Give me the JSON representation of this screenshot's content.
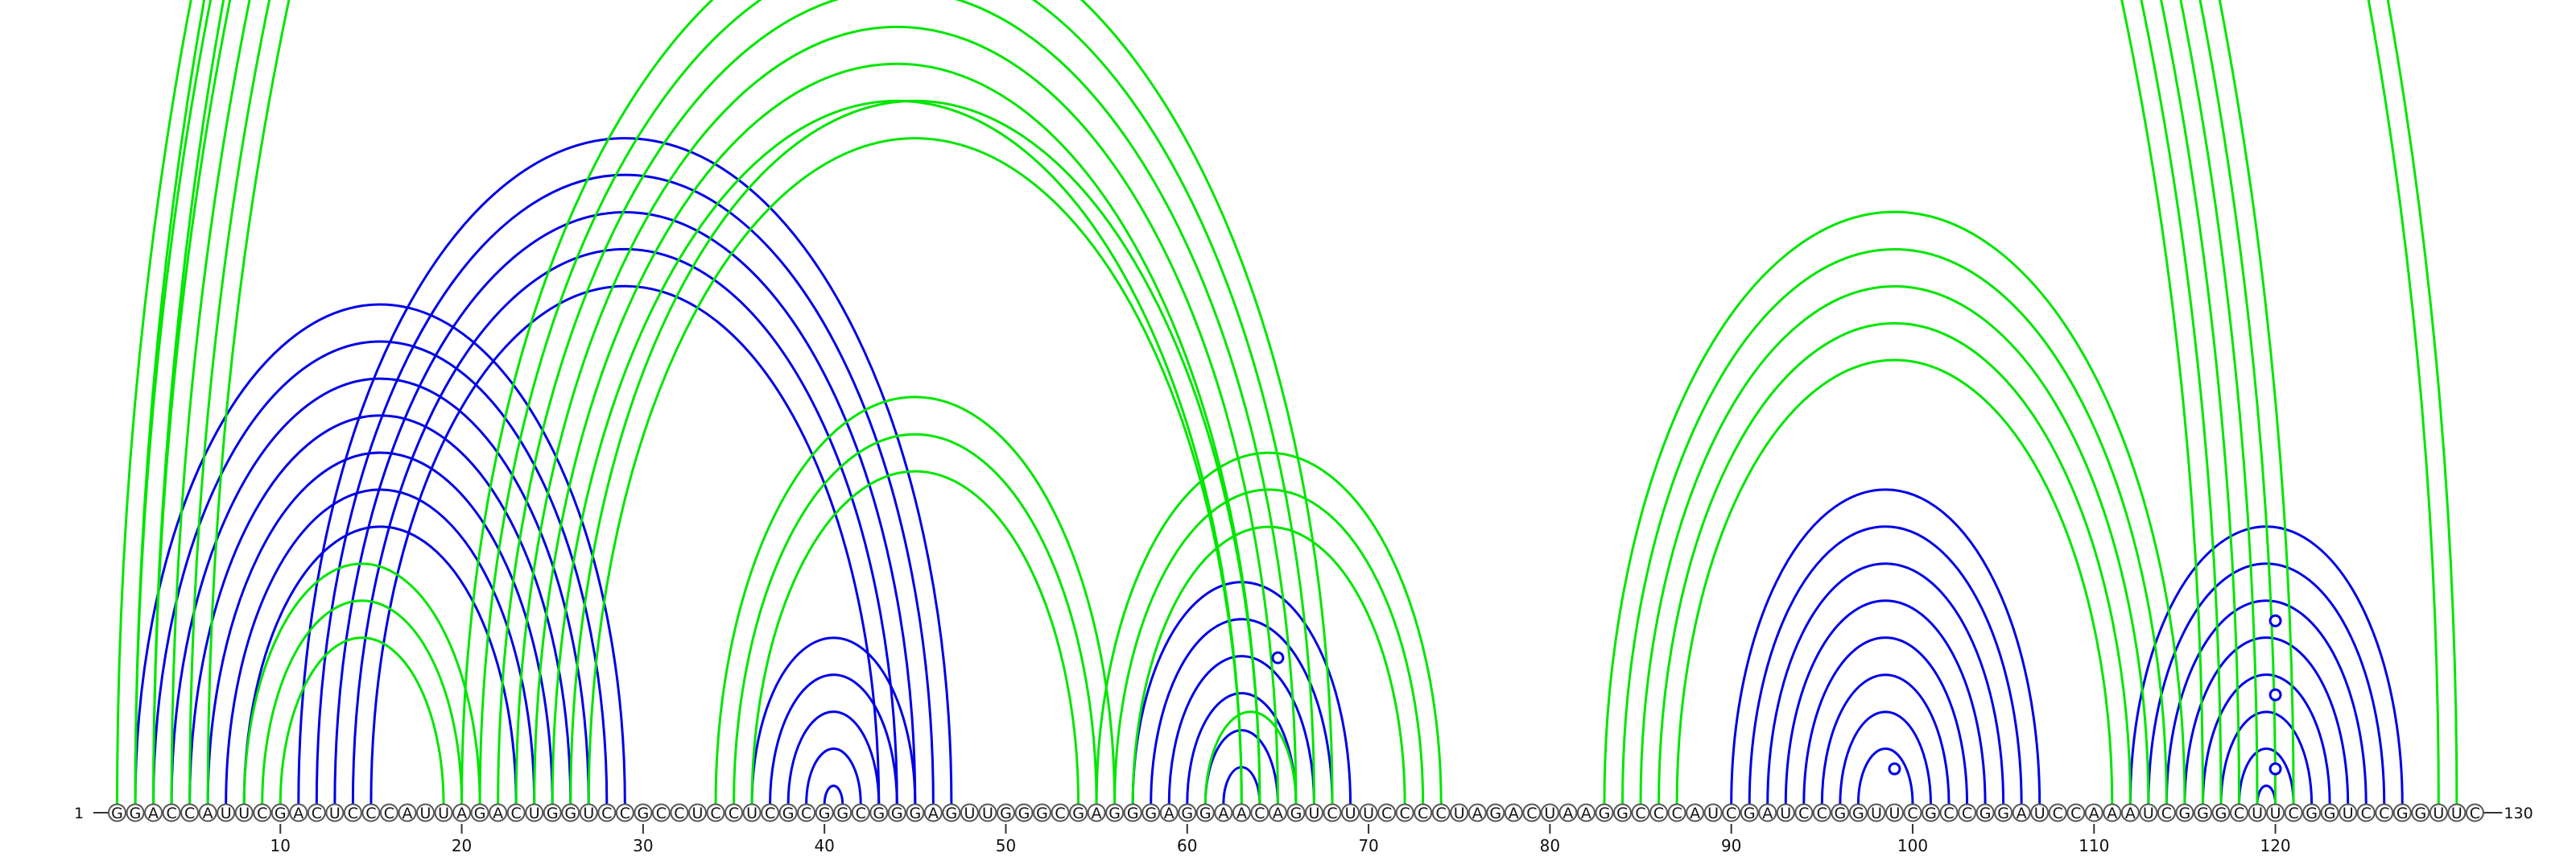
{
  "sequence": "GGACCAUUCGACUCCCAUUAGACUGGUCCGCCUCCUCGCGGCGGGAGUUGGGCGAGGGAGGAACAGUCUUCCCCUAGACUAAGGCCCAUCGAUCCGGUUCGCCGGAUCCAAAUCGGGCUUCGGUCCGGUUC",
  "start_label": "1",
  "end_label": "130",
  "ticks": [
    "10",
    "20",
    "30",
    "40",
    "50",
    "60",
    "70",
    "80",
    "90",
    "100",
    "110",
    "120"
  ],
  "colors": {
    "blue": "#0000e6",
    "green": "#00e600"
  },
  "blue_helices": [
    {
      "i": 2,
      "j": 29,
      "len": 7
    },
    {
      "i": 11,
      "j": 47,
      "len": 5
    },
    {
      "i": 36,
      "j": 45,
      "len": 7
    },
    {
      "i": 57,
      "j": 69,
      "len": 6
    },
    {
      "i": 90,
      "j": 107,
      "len": 8
    },
    {
      "i": 112,
      "j": 127,
      "len": 8
    }
  ],
  "green_helices": [
    {
      "i": 1,
      "j": 121,
      "len": 6
    },
    {
      "i": 2,
      "j": 130,
      "len": 2
    },
    {
      "i": 8,
      "j": 21,
      "len": 3
    },
    {
      "i": 20,
      "j": 68,
      "len": 6
    },
    {
      "i": 26,
      "j": 64,
      "len": 2
    },
    {
      "i": 34,
      "j": 56,
      "len": 3
    },
    {
      "i": 55,
      "j": 74,
      "len": 3
    },
    {
      "i": 61,
      "j": 66,
      "len": 1
    },
    {
      "i": 83,
      "j": 115,
      "len": 5
    }
  ],
  "markers": [
    {
      "i": 65,
      "j": 66,
      "color": "green",
      "span": 130
    },
    {
      "i": 64,
      "j": 66,
      "color": "blue",
      "span": 8
    },
    {
      "i": 99,
      "j": 99,
      "color": "blue",
      "span": 2
    },
    {
      "i": 120,
      "j": 120,
      "color": "blue",
      "span": 10
    },
    {
      "i": 120,
      "j": 120,
      "color": "blue",
      "span": 6
    },
    {
      "i": 120,
      "j": 120,
      "color": "blue",
      "span": 2
    }
  ]
}
